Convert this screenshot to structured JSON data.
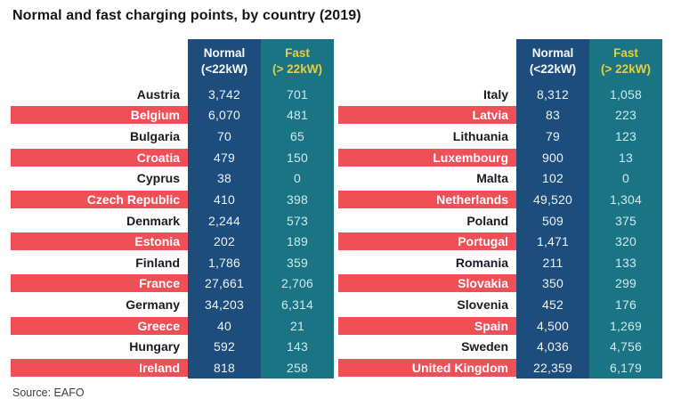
{
  "title": "Normal and fast charging points, by country (2019)",
  "source": "Source: EAFO",
  "columns": {
    "normal_label": "Normal",
    "normal_sub": "(<22kW)",
    "fast_label": "Fast",
    "fast_sub": "(> 22kW)"
  },
  "colors": {
    "stripe_red": "#ef4f56",
    "normal_navy": "#1d4d7c",
    "fast_teal": "#1a7483",
    "fast_header_yellow": "#e9cf3e"
  },
  "tables": [
    {
      "rows": [
        {
          "country": "Austria",
          "normal": "3,742",
          "fast": "701"
        },
        {
          "country": "Belgium",
          "normal": "6,070",
          "fast": "481"
        },
        {
          "country": "Bulgaria",
          "normal": "70",
          "fast": "65"
        },
        {
          "country": "Croatia",
          "normal": "479",
          "fast": "150"
        },
        {
          "country": "Cyprus",
          "normal": "38",
          "fast": "0"
        },
        {
          "country": "Czech Republic",
          "normal": "410",
          "fast": "398"
        },
        {
          "country": "Denmark",
          "normal": "2,244",
          "fast": "573"
        },
        {
          "country": "Estonia",
          "normal": "202",
          "fast": "189"
        },
        {
          "country": "Finland",
          "normal": "1,786",
          "fast": "359"
        },
        {
          "country": "France",
          "normal": "27,661",
          "fast": "2,706"
        },
        {
          "country": "Germany",
          "normal": "34,203",
          "fast": "6,314"
        },
        {
          "country": "Greece",
          "normal": "40",
          "fast": "21"
        },
        {
          "country": "Hungary",
          "normal": "592",
          "fast": "143"
        },
        {
          "country": "Ireland",
          "normal": "818",
          "fast": "258"
        }
      ]
    },
    {
      "rows": [
        {
          "country": "Italy",
          "normal": "8,312",
          "fast": "1,058"
        },
        {
          "country": "Latvia",
          "normal": "83",
          "fast": "223"
        },
        {
          "country": "Lithuania",
          "normal": "79",
          "fast": "123"
        },
        {
          "country": "Luxembourg",
          "normal": "900",
          "fast": "13"
        },
        {
          "country": "Malta",
          "normal": "102",
          "fast": "0"
        },
        {
          "country": "Netherlands",
          "normal": "49,520",
          "fast": "1,304"
        },
        {
          "country": "Poland",
          "normal": "509",
          "fast": "375"
        },
        {
          "country": "Portugal",
          "normal": "1,471",
          "fast": "320"
        },
        {
          "country": "Romania",
          "normal": "211",
          "fast": "133"
        },
        {
          "country": "Slovakia",
          "normal": "350",
          "fast": "299"
        },
        {
          "country": "Slovenia",
          "normal": "452",
          "fast": "176"
        },
        {
          "country": "Spain",
          "normal": "4,500",
          "fast": "1,269"
        },
        {
          "country": "Sweden",
          "normal": "4,036",
          "fast": "4,756"
        },
        {
          "country": "United Kingdom",
          "normal": "22,359",
          "fast": "6,179"
        }
      ]
    }
  ],
  "chart_data": {
    "type": "table",
    "title": "Normal and fast charging points, by country (2019)",
    "categories": [
      "Austria",
      "Belgium",
      "Bulgaria",
      "Croatia",
      "Cyprus",
      "Czech Republic",
      "Denmark",
      "Estonia",
      "Finland",
      "France",
      "Germany",
      "Greece",
      "Hungary",
      "Ireland",
      "Italy",
      "Latvia",
      "Lithuania",
      "Luxembourg",
      "Malta",
      "Netherlands",
      "Poland",
      "Portugal",
      "Romania",
      "Slovakia",
      "Slovenia",
      "Spain",
      "Sweden",
      "United Kingdom"
    ],
    "series": [
      {
        "name": "Normal (<22kW)",
        "values": [
          3742,
          6070,
          70,
          479,
          38,
          410,
          2244,
          202,
          1786,
          27661,
          34203,
          40,
          592,
          818,
          8312,
          83,
          79,
          900,
          102,
          49520,
          509,
          1471,
          211,
          350,
          452,
          4500,
          4036,
          22359
        ]
      },
      {
        "name": "Fast (> 22kW)",
        "values": [
          701,
          481,
          65,
          150,
          0,
          398,
          573,
          189,
          359,
          2706,
          6314,
          21,
          143,
          258,
          1058,
          223,
          123,
          13,
          0,
          1304,
          375,
          320,
          133,
          299,
          176,
          1269,
          4756,
          6179
        ]
      }
    ],
    "source": "Source: EAFO"
  }
}
